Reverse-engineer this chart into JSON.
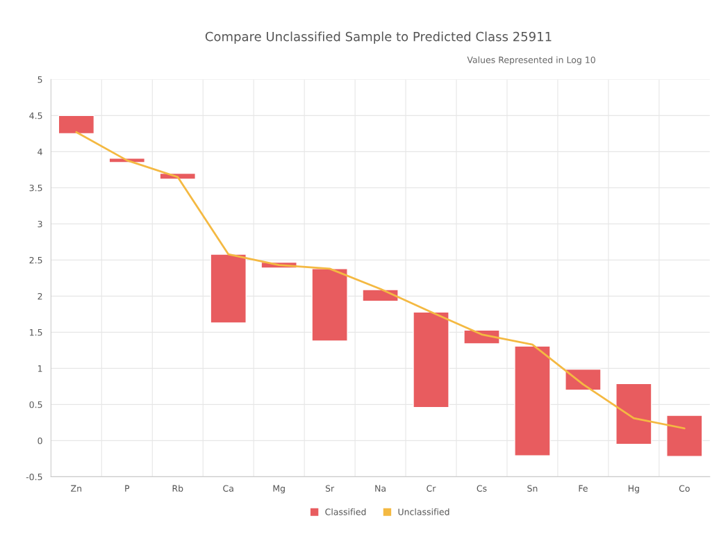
{
  "chart_data": {
    "type": "bar",
    "title": "Compare Unclassified Sample to Predicted Class 25911",
    "subtitle": "Values Represented in Log 10",
    "categories": [
      "Zn",
      "P",
      "Rb",
      "Ca",
      "Mg",
      "Sr",
      "Na",
      "Cr",
      "Cs",
      "Sn",
      "Fe",
      "Hg",
      "Co"
    ],
    "series": [
      {
        "name": "Classified",
        "color": "#e85c5f",
        "base": [
          4.25,
          3.85,
          3.62,
          1.63,
          2.39,
          1.38,
          1.93,
          0.46,
          1.34,
          -0.21,
          0.7,
          -0.05,
          -0.22
        ],
        "values": [
          0.25,
          0.06,
          0.08,
          0.95,
          0.08,
          1.0,
          0.16,
          1.32,
          0.19,
          1.52,
          0.29,
          0.84,
          0.57
        ]
      },
      {
        "name": "Unclassified",
        "type": "line",
        "color": "#f4b942",
        "values": [
          4.27,
          3.88,
          3.65,
          2.58,
          2.43,
          2.38,
          2.1,
          1.78,
          1.47,
          1.33,
          0.78,
          0.31,
          0.17
        ]
      }
    ],
    "ylim": [
      -0.5,
      5
    ],
    "yticks": [
      -0.5,
      0,
      0.5,
      1,
      1.5,
      2,
      2.5,
      3,
      3.5,
      4,
      4.5,
      5
    ],
    "grid": true,
    "legend": "bottom",
    "marker": "none",
    "line_style": "solid"
  }
}
